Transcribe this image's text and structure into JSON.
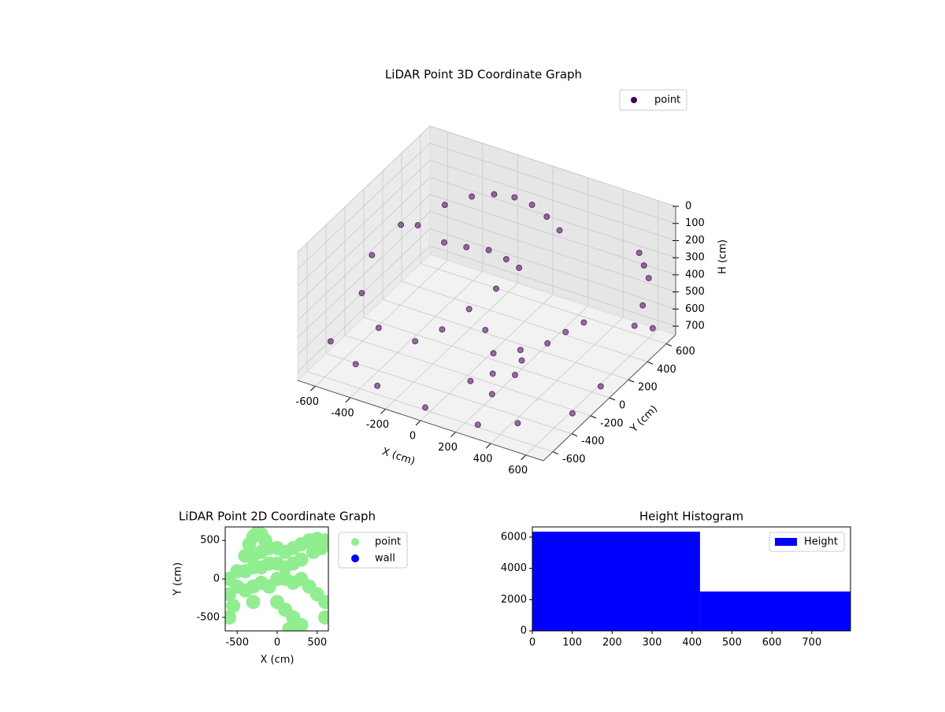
{
  "chart_data": [
    {
      "type": "scatter3d",
      "title": "LiDAR Point 3D Coordinate Graph",
      "xlabel": "X (cm)",
      "ylabel": "Y (cm)",
      "zlabel": "H (cm)",
      "series": [
        {
          "name": "point",
          "color": "#440154",
          "x": [
            -400,
            -300,
            -200,
            -100,
            0,
            100,
            200,
            -350,
            -250,
            -150,
            -50,
            50,
            200,
            250,
            300,
            150,
            350,
            100,
            300,
            400,
            450,
            500,
            600,
            600,
            600,
            620,
            600,
            650,
            -600,
            -550,
            -500,
            -620,
            -450,
            -300,
            0,
            300,
            500,
            650,
            650,
            -200,
            -100,
            0,
            -300,
            200,
            -650,
            -400
          ],
          "y": [
            300,
            400,
            450,
            480,
            480,
            450,
            400,
            200,
            250,
            300,
            300,
            250,
            -300,
            -400,
            -500,
            -450,
            -350,
            -200,
            -200,
            -100,
            0,
            100,
            500,
            550,
            600,
            500,
            450,
            550,
            -100,
            -300,
            200,
            -500,
            -550,
            -600,
            -650,
            -650,
            -600,
            -300,
            0,
            -100,
            0,
            100,
            -200,
            0,
            300,
            -400
          ],
          "h": [
            150,
            120,
            100,
            100,
            110,
            130,
            150,
            300,
            320,
            330,
            350,
            340,
            500,
            550,
            600,
            600,
            550,
            450,
            500,
            480,
            450,
            430,
            200,
            300,
            400,
            500,
            600,
            650,
            300,
            400,
            250,
            600,
            650,
            700,
            700,
            700,
            650,
            700,
            700,
            600,
            500,
            400,
            650,
            700,
            350,
            500
          ]
        }
      ],
      "xlim": [
        -700,
        700
      ],
      "ylim": [
        -700,
        700
      ],
      "zlim": [
        0,
        750
      ],
      "z_inverted": true,
      "xticks": [
        -600,
        -400,
        -200,
        0,
        200,
        400,
        600
      ],
      "yticks": [
        -600,
        -400,
        -200,
        0,
        200,
        400,
        600
      ],
      "zticks": [
        0,
        100,
        200,
        300,
        400,
        500,
        600,
        700
      ],
      "legend": "upper right"
    },
    {
      "type": "scatter",
      "title": "LiDAR Point 2D Coordinate Graph",
      "xlabel": "X (cm)",
      "ylabel": "Y (cm)",
      "series": [
        {
          "name": "point",
          "color": "#90ee90",
          "x": [
            -300,
            -250,
            -200,
            -350,
            -150,
            -400,
            -300,
            -200,
            -100,
            0,
            100,
            200,
            300,
            400,
            500,
            600,
            550,
            450,
            -500,
            -400,
            -300,
            -200,
            -100,
            0,
            100,
            200,
            300,
            -600,
            -500,
            -400,
            -300,
            -200,
            0,
            100,
            200,
            300,
            400,
            500,
            -600,
            -550,
            -600,
            0,
            100,
            200,
            300,
            150,
            600,
            600,
            -100,
            -300
          ],
          "y": [
            550,
            600,
            580,
            450,
            500,
            300,
            300,
            350,
            400,
            400,
            350,
            400,
            450,
            500,
            520,
            500,
            400,
            350,
            100,
            100,
            150,
            150,
            200,
            200,
            150,
            200,
            250,
            0,
            -100,
            -150,
            -100,
            -50,
            0,
            0,
            -50,
            0,
            -100,
            -200,
            -200,
            -350,
            -500,
            -300,
            -400,
            -500,
            -600,
            -650,
            -300,
            -500,
            -100,
            -300
          ]
        },
        {
          "name": "wall",
          "color": "#0000ff",
          "x": [],
          "y": []
        }
      ],
      "xlim": [
        -650,
        640
      ],
      "ylim": [
        -675,
        675
      ],
      "xticks": [
        -500,
        0,
        500
      ],
      "yticks": [
        -500,
        0,
        500
      ],
      "legend": "outside right"
    },
    {
      "type": "histogram",
      "title": "Height Histogram",
      "bins": [
        0,
        420,
        797
      ],
      "series": [
        {
          "name": "Height",
          "color": "#0000ff",
          "values": [
            6350,
            2520
          ]
        }
      ],
      "xlim": [
        0,
        797
      ],
      "ylim": [
        0,
        6656
      ],
      "xticks": [
        0,
        100,
        200,
        300,
        400,
        500,
        600,
        700
      ],
      "yticks": [
        0,
        2000,
        4000,
        6000
      ],
      "legend": "upper right"
    }
  ]
}
